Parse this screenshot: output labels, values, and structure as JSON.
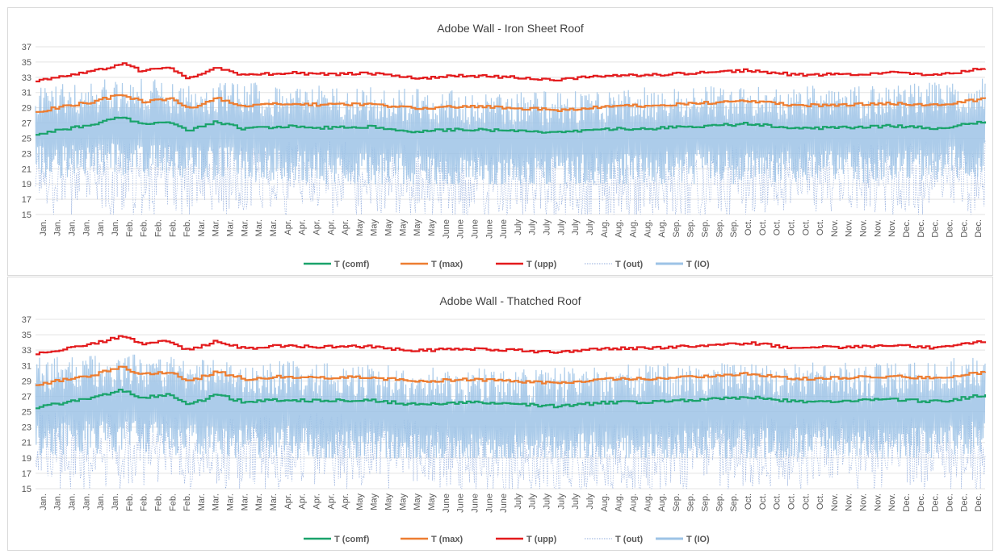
{
  "chart_data": [
    {
      "type": "line",
      "title": "Adobe Wall - Iron Sheet Roof",
      "ylim": [
        15,
        37
      ],
      "yticks": [
        15,
        17,
        19,
        21,
        23,
        25,
        27,
        29,
        31,
        33,
        35,
        37
      ],
      "grid": "horizontal",
      "legend_position": "bottom",
      "xtick_labels": [
        "Jan.",
        "Jan.",
        "Jan.",
        "Jan.",
        "Jan.",
        "Jan.",
        "Feb.",
        "Feb.",
        "Feb.",
        "Feb.",
        "Feb.",
        "Mar.",
        "Mar.",
        "Mar.",
        "Mar.",
        "Mar.",
        "Mar.",
        "Apr.",
        "Apr.",
        "Apr.",
        "Apr.",
        "Apr.",
        "May",
        "May",
        "May",
        "May",
        "May",
        "May",
        "June",
        "June",
        "June",
        "June",
        "June",
        "July",
        "July",
        "July",
        "July",
        "July",
        "July",
        "Aug.",
        "Aug.",
        "Aug.",
        "Aug.",
        "Aug.",
        "Sep.",
        "Sep.",
        "Sep.",
        "Sep.",
        "Sep.",
        "Oct.",
        "Oct.",
        "Oct.",
        "Oct.",
        "Oct.",
        "Oct.",
        "Nov.",
        "Nov.",
        "Nov.",
        "Nov.",
        "Nov.",
        "Dec.",
        "Dec.",
        "Dec.",
        "Dec.",
        "Dec.",
        "Dec."
      ],
      "series": [
        {
          "name": "T (comf)",
          "color": "#1aa36b",
          "style": "step",
          "x": [
            0,
            0.03,
            0.06,
            0.09,
            0.11,
            0.14,
            0.16,
            0.19,
            0.22,
            0.26,
            0.3,
            0.35,
            0.4,
            0.45,
            0.5,
            0.55,
            0.6,
            0.65,
            0.7,
            0.75,
            0.8,
            0.85,
            0.9,
            0.95,
            1.0
          ],
          "values": [
            25.5,
            26.2,
            26.8,
            27.8,
            26.8,
            27.2,
            25.9,
            27.2,
            26.2,
            26.6,
            26.4,
            26.5,
            25.9,
            26.2,
            26.0,
            25.7,
            26.2,
            26.3,
            26.6,
            26.9,
            26.3,
            26.4,
            26.6,
            26.3,
            27.2
          ]
        },
        {
          "name": "T (max)",
          "color": "#ed7d31",
          "style": "step",
          "x": [
            0,
            0.03,
            0.06,
            0.09,
            0.11,
            0.14,
            0.16,
            0.19,
            0.22,
            0.26,
            0.3,
            0.35,
            0.4,
            0.45,
            0.5,
            0.55,
            0.6,
            0.65,
            0.7,
            0.75,
            0.8,
            0.85,
            0.9,
            0.95,
            1.0
          ],
          "values": [
            28.5,
            29.2,
            29.8,
            30.8,
            29.8,
            30.2,
            28.9,
            30.2,
            29.2,
            29.6,
            29.4,
            29.5,
            28.9,
            29.2,
            29.0,
            28.7,
            29.2,
            29.3,
            29.6,
            29.9,
            29.3,
            29.4,
            29.6,
            29.3,
            30.2
          ]
        },
        {
          "name": "T (upp)",
          "color": "#e31a1c",
          "style": "step",
          "x": [
            0,
            0.03,
            0.06,
            0.09,
            0.11,
            0.14,
            0.16,
            0.19,
            0.22,
            0.26,
            0.3,
            0.35,
            0.4,
            0.45,
            0.5,
            0.55,
            0.6,
            0.65,
            0.7,
            0.75,
            0.8,
            0.85,
            0.9,
            0.95,
            1.0
          ],
          "values": [
            32.5,
            33.2,
            33.8,
            34.8,
            33.8,
            34.2,
            32.9,
            34.2,
            33.2,
            33.6,
            33.4,
            33.5,
            32.9,
            33.2,
            33.0,
            32.7,
            33.2,
            33.3,
            33.6,
            33.9,
            33.3,
            33.4,
            33.6,
            33.3,
            34.2
          ]
        },
        {
          "name": "T (out)",
          "color": "#8faadc",
          "style": "dotted",
          "x": [
            0,
            0.1,
            0.2,
            0.3,
            0.4,
            0.5,
            0.6,
            0.7,
            0.8,
            0.9,
            1.0
          ],
          "values": [
            21.0,
            20.0,
            19.8,
            20.5,
            19.5,
            18.5,
            19.0,
            19.5,
            19.8,
            19.8,
            20.5
          ],
          "min": 15,
          "max": 34
        },
        {
          "name": "T (IO)",
          "color": "#9dc3e6",
          "style": "band",
          "x": [
            0,
            0.1,
            0.2,
            0.3,
            0.4,
            0.5,
            0.6,
            0.7,
            0.8,
            0.9,
            1.0
          ],
          "values": [
            26.0,
            26.5,
            26.0,
            25.5,
            25.0,
            24.5,
            25.0,
            25.5,
            25.5,
            25.5,
            26.5
          ],
          "min": 19,
          "max": 35
        }
      ]
    },
    {
      "type": "line",
      "title": "Adobe Wall - Thatched Roof",
      "ylim": [
        15,
        37
      ],
      "yticks": [
        15,
        17,
        19,
        21,
        23,
        25,
        27,
        29,
        31,
        33,
        35,
        37
      ],
      "grid": "horizontal",
      "legend_position": "bottom",
      "xtick_labels": [
        "Jan.",
        "Jan.",
        "Jan.",
        "Jan.",
        "Jan.",
        "Jan.",
        "Feb.",
        "Feb.",
        "Feb.",
        "Feb.",
        "Feb.",
        "Mar.",
        "Mar.",
        "Mar.",
        "Mar.",
        "Mar.",
        "Mar.",
        "Apr.",
        "Apr.",
        "Apr.",
        "Apr.",
        "Apr.",
        "May",
        "May",
        "May",
        "May",
        "May",
        "May",
        "June",
        "June",
        "June",
        "June",
        "June",
        "July",
        "July",
        "July",
        "July",
        "July",
        "July",
        "Aug.",
        "Aug.",
        "Aug.",
        "Aug.",
        "Aug.",
        "Sep.",
        "Sep.",
        "Sep.",
        "Sep.",
        "Sep.",
        "Oct.",
        "Oct.",
        "Oct.",
        "Oct.",
        "Oct.",
        "Oct.",
        "Nov.",
        "Nov.",
        "Nov.",
        "Nov.",
        "Nov.",
        "Dec.",
        "Dec.",
        "Dec.",
        "Dec.",
        "Dec.",
        "Dec."
      ],
      "series": [
        {
          "name": "T (comf)",
          "color": "#1aa36b",
          "style": "step",
          "x": [
            0,
            0.03,
            0.06,
            0.09,
            0.11,
            0.14,
            0.16,
            0.19,
            0.22,
            0.26,
            0.3,
            0.35,
            0.4,
            0.45,
            0.5,
            0.55,
            0.6,
            0.65,
            0.7,
            0.75,
            0.8,
            0.85,
            0.9,
            0.95,
            1.0
          ],
          "values": [
            25.5,
            26.2,
            26.8,
            27.8,
            26.8,
            27.2,
            25.9,
            27.2,
            26.2,
            26.6,
            26.4,
            26.5,
            25.9,
            26.2,
            26.0,
            25.7,
            26.2,
            26.3,
            26.6,
            26.9,
            26.3,
            26.4,
            26.6,
            26.3,
            27.2
          ]
        },
        {
          "name": "T (max)",
          "color": "#ed7d31",
          "style": "step",
          "x": [
            0,
            0.03,
            0.06,
            0.09,
            0.11,
            0.14,
            0.16,
            0.19,
            0.22,
            0.26,
            0.3,
            0.35,
            0.4,
            0.45,
            0.5,
            0.55,
            0.6,
            0.65,
            0.7,
            0.75,
            0.8,
            0.85,
            0.9,
            0.95,
            1.0
          ],
          "values": [
            28.5,
            29.2,
            29.8,
            30.8,
            29.8,
            30.2,
            28.9,
            30.2,
            29.2,
            29.6,
            29.4,
            29.5,
            28.9,
            29.2,
            29.0,
            28.7,
            29.2,
            29.3,
            29.6,
            29.9,
            29.3,
            29.4,
            29.6,
            29.3,
            30.2
          ]
        },
        {
          "name": "T (upp)",
          "color": "#e31a1c",
          "style": "step",
          "x": [
            0,
            0.03,
            0.06,
            0.09,
            0.11,
            0.14,
            0.16,
            0.19,
            0.22,
            0.26,
            0.3,
            0.35,
            0.4,
            0.45,
            0.5,
            0.55,
            0.6,
            0.65,
            0.7,
            0.75,
            0.8,
            0.85,
            0.9,
            0.95,
            1.0
          ],
          "values": [
            32.5,
            33.2,
            33.8,
            34.8,
            33.8,
            34.2,
            32.9,
            34.2,
            33.2,
            33.6,
            33.4,
            33.5,
            32.9,
            33.2,
            33.0,
            32.7,
            33.2,
            33.3,
            33.6,
            33.9,
            33.3,
            33.4,
            33.6,
            33.3,
            34.2
          ]
        },
        {
          "name": "T (out)",
          "color": "#8faadc",
          "style": "dotted",
          "x": [
            0,
            0.1,
            0.2,
            0.3,
            0.4,
            0.5,
            0.6,
            0.7,
            0.8,
            0.9,
            1.0
          ],
          "values": [
            21.0,
            20.0,
            19.8,
            20.5,
            19.5,
            18.5,
            19.0,
            19.5,
            19.8,
            19.8,
            20.5
          ],
          "min": 15,
          "max": 34
        },
        {
          "name": "T (IO)",
          "color": "#9dc3e6",
          "style": "band",
          "x": [
            0,
            0.1,
            0.2,
            0.3,
            0.4,
            0.5,
            0.6,
            0.7,
            0.8,
            0.9,
            1.0
          ],
          "values": [
            25.5,
            26.0,
            25.5,
            25.0,
            24.5,
            24.0,
            24.5,
            25.0,
            25.0,
            25.0,
            26.0
          ],
          "min": 19,
          "max": 33
        }
      ]
    }
  ]
}
